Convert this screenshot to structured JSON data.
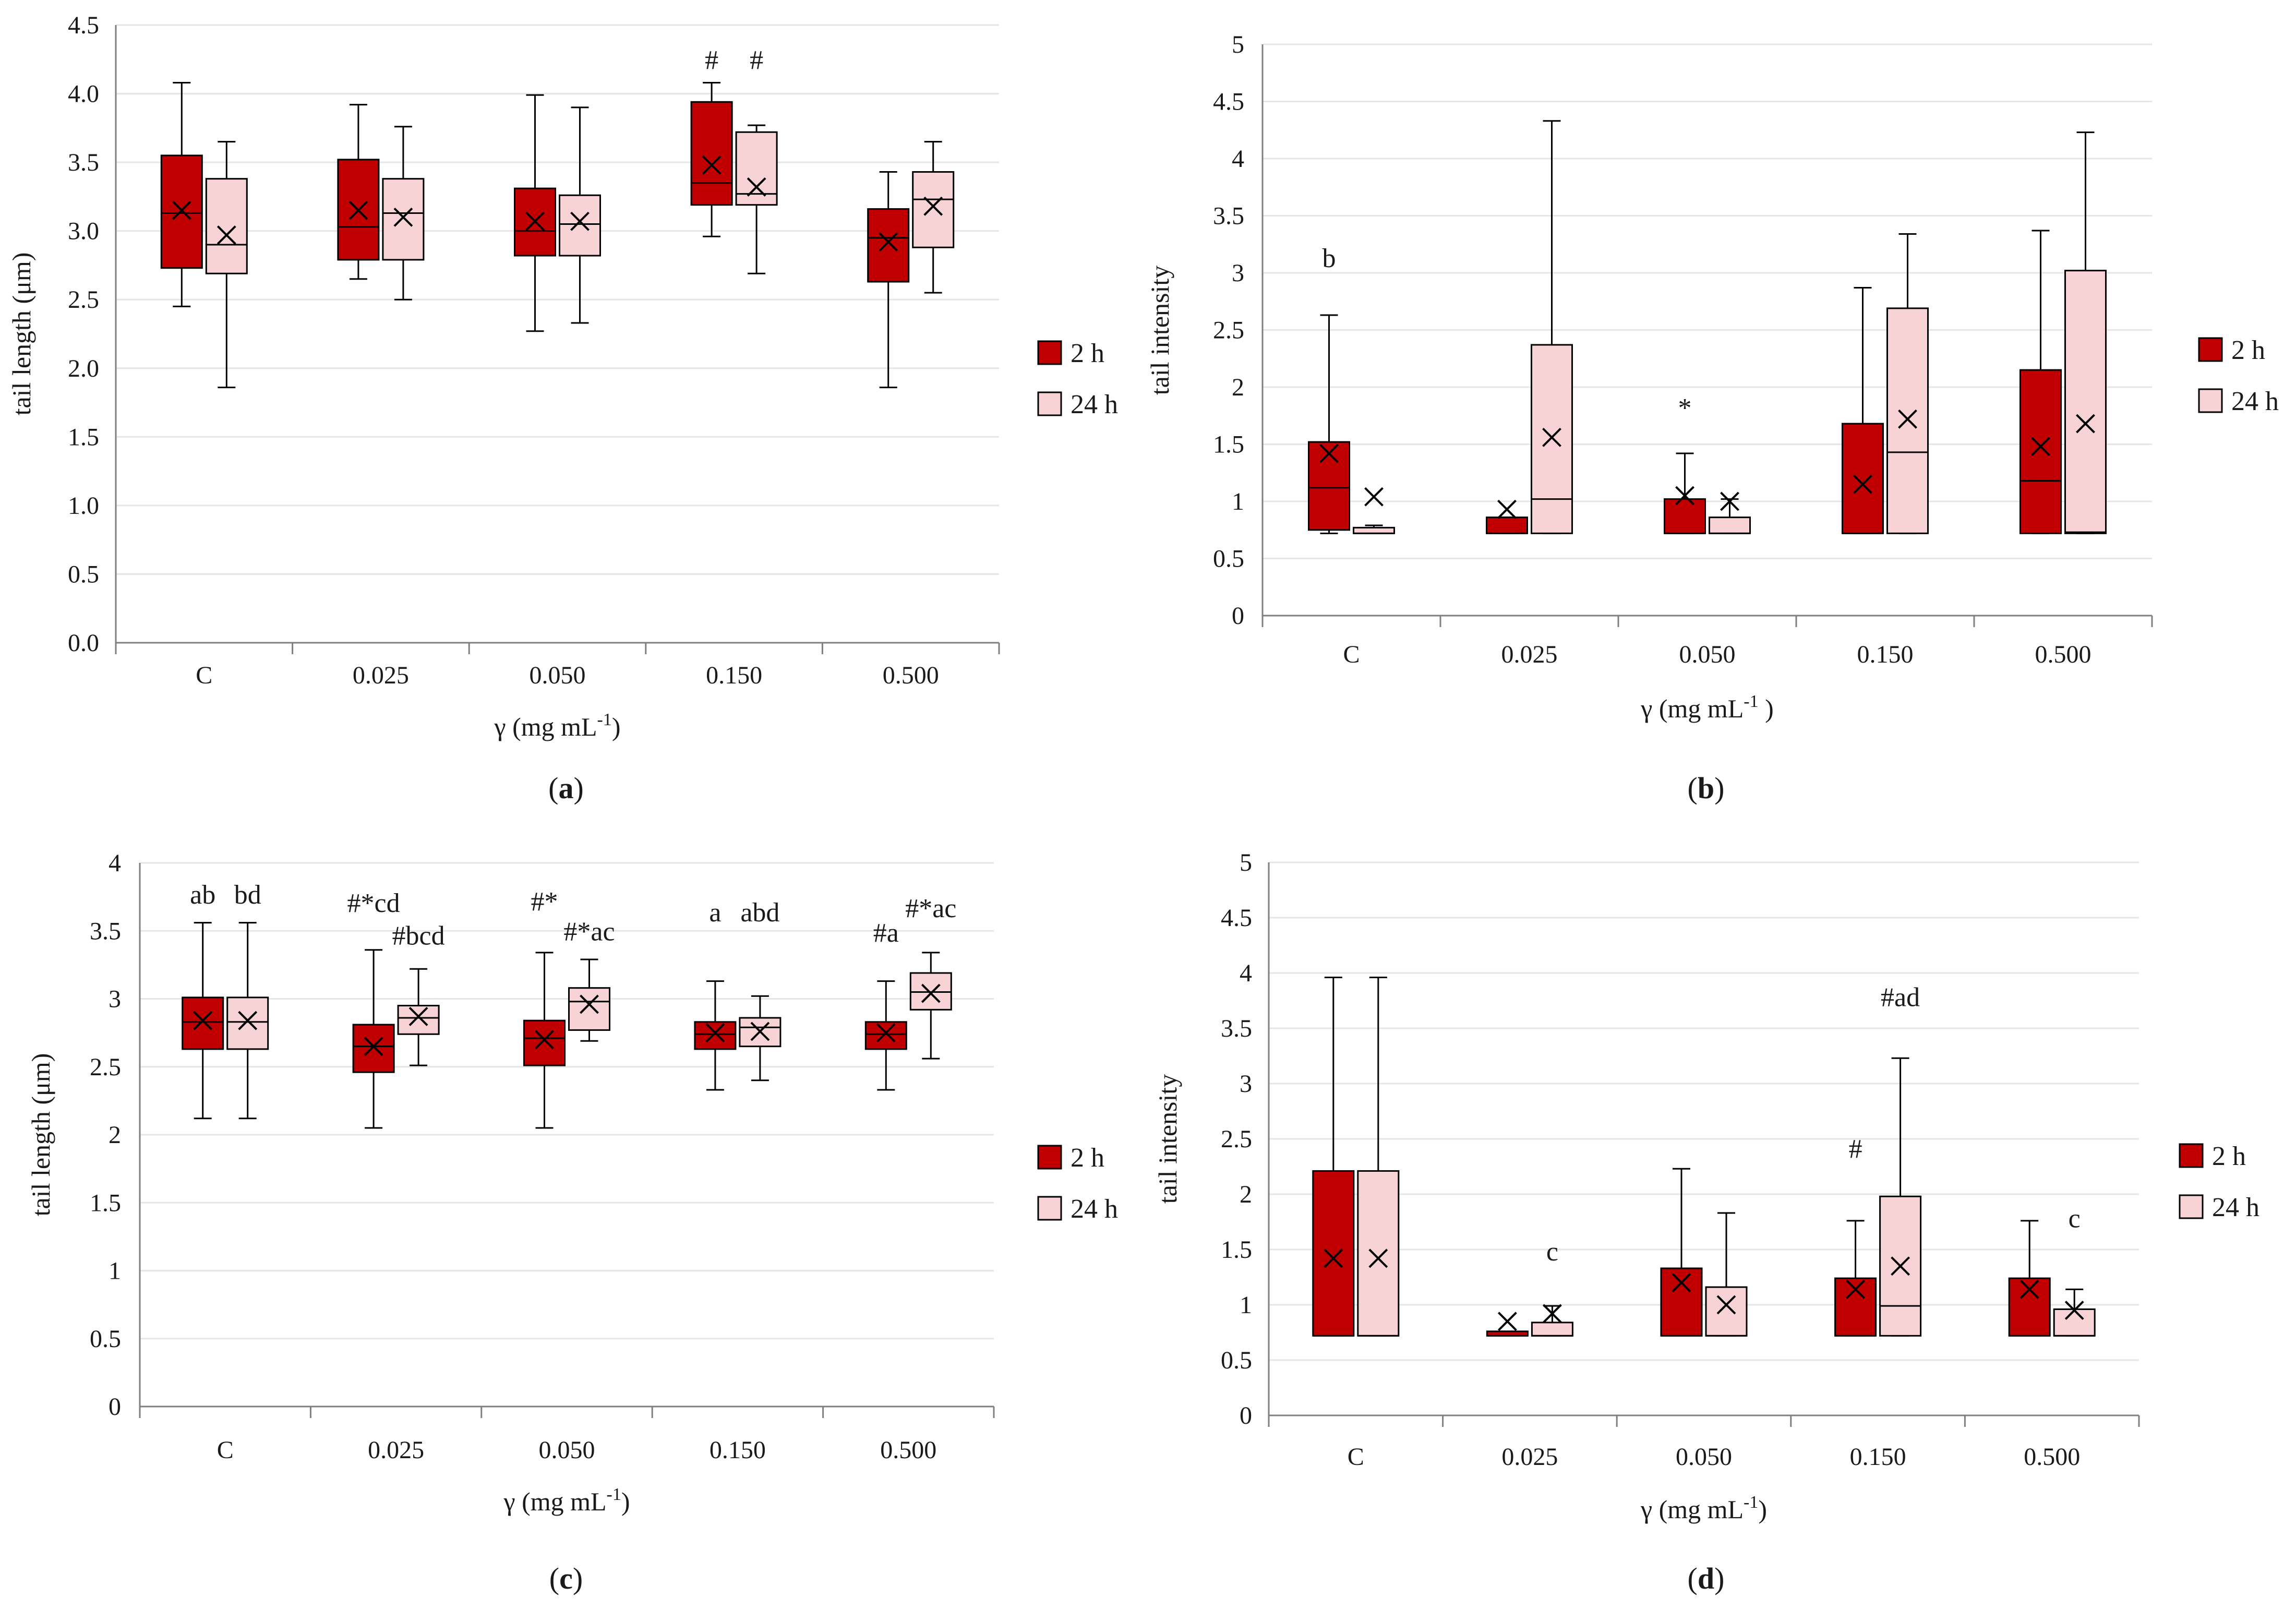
{
  "colors": {
    "h2": "#c00000",
    "h24": "#f8d3d5",
    "stroke": "#000000",
    "grid": "#e6e6e6"
  },
  "legend": {
    "h2": "2 h",
    "h24": "24 h"
  },
  "chart_data": [
    {
      "type": "box",
      "panel": "(a)",
      "panel_label": {
        "open": "(",
        "letter": "a",
        "close": ")"
      },
      "xlabel": "γ (mg mL-1)",
      "xlabel_main": "γ (mg mL",
      "xlabel_sup": "-1",
      "xlabel_end": ")",
      "ylabel": "tail length (μm)",
      "ylim": [
        0,
        4.5
      ],
      "yticks": [
        "0.0",
        "0.5",
        "1.0",
        "1.5",
        "2.0",
        "2.5",
        "3.0",
        "3.5",
        "4.0",
        "4.5"
      ],
      "categories": [
        "C",
        "0.025",
        "0.050",
        "0.150",
        "0.500"
      ],
      "series": [
        {
          "name": "2 h",
          "boxes": [
            {
              "min": 2.45,
              "q1": 2.73,
              "median": 3.13,
              "q3": 3.55,
              "max": 4.08,
              "mean": 3.15
            },
            {
              "min": 2.65,
              "q1": 2.79,
              "median": 3.03,
              "q3": 3.52,
              "max": 3.92,
              "mean": 3.15
            },
            {
              "min": 2.27,
              "q1": 2.82,
              "median": 3.0,
              "q3": 3.31,
              "max": 3.99,
              "mean": 3.07
            },
            {
              "min": 2.96,
              "q1": 3.19,
              "median": 3.35,
              "q3": 3.94,
              "max": 4.08,
              "mean": 3.48
            },
            {
              "min": 1.86,
              "q1": 2.63,
              "median": 2.95,
              "q3": 3.16,
              "max": 3.43,
              "mean": 2.92
            }
          ]
        },
        {
          "name": "24 h",
          "boxes": [
            {
              "min": 1.86,
              "q1": 2.69,
              "median": 2.9,
              "q3": 3.38,
              "max": 3.65,
              "mean": 2.97
            },
            {
              "min": 2.5,
              "q1": 2.79,
              "median": 3.13,
              "q3": 3.38,
              "max": 3.76,
              "mean": 3.1
            },
            {
              "min": 2.33,
              "q1": 2.82,
              "median": 3.05,
              "q3": 3.26,
              "max": 3.9,
              "mean": 3.07
            },
            {
              "min": 2.69,
              "q1": 3.19,
              "median": 3.27,
              "q3": 3.72,
              "max": 3.77,
              "mean": 3.32
            },
            {
              "min": 2.55,
              "q1": 2.88,
              "median": 3.23,
              "q3": 3.43,
              "max": 3.65,
              "mean": 3.18
            }
          ]
        }
      ],
      "annotations": [
        {
          "category": "0.150",
          "series": "2 h",
          "text": "#",
          "y": 4.18
        },
        {
          "category": "0.150",
          "series": "24 h",
          "text": "#",
          "y": 4.18
        }
      ]
    },
    {
      "type": "box",
      "panel": "(b)",
      "panel_label": {
        "open": "(",
        "letter": "b",
        "close": ")"
      },
      "xlabel": "γ (mg mL-1 )",
      "xlabel_main": "γ (mg mL",
      "xlabel_sup": "-1",
      "xlabel_end": " )",
      "ylabel": "tail intensity",
      "ylim": [
        0,
        5
      ],
      "yticks": [
        "0",
        "0.5",
        "1",
        "1.5",
        "2",
        "2.5",
        "3",
        "3.5",
        "4",
        "4.5",
        "5"
      ],
      "categories": [
        "C",
        "0.025",
        "0.050",
        "0.150",
        "0.500"
      ],
      "series": [
        {
          "name": "2 h",
          "boxes": [
            {
              "min": 0.72,
              "q1": 0.75,
              "median": 1.12,
              "q3": 1.52,
              "max": 2.63,
              "mean": 1.42
            },
            {
              "min": 0.72,
              "q1": 0.72,
              "median": 0.72,
              "q3": 0.86,
              "max": 0.86,
              "mean": 0.93
            },
            {
              "min": 0.72,
              "q1": 0.72,
              "median": 0.72,
              "q3": 1.02,
              "max": 1.42,
              "mean": 1.05
            },
            {
              "min": 0.72,
              "q1": 0.72,
              "median": 0.72,
              "q3": 1.68,
              "max": 2.87,
              "mean": 1.15
            },
            {
              "min": 0.72,
              "q1": 0.72,
              "median": 1.18,
              "q3": 2.15,
              "max": 3.37,
              "mean": 1.48
            }
          ]
        },
        {
          "name": "24 h",
          "boxes": [
            {
              "min": 0.72,
              "q1": 0.72,
              "median": 0.72,
              "q3": 0.77,
              "max": 0.79,
              "mean": 1.04
            },
            {
              "min": 0.72,
              "q1": 0.72,
              "median": 1.02,
              "q3": 2.37,
              "max": 4.33,
              "mean": 1.56
            },
            {
              "min": 0.72,
              "q1": 0.72,
              "median": 0.72,
              "q3": 0.86,
              "max": 1.02,
              "mean": 1.0
            },
            {
              "min": 0.72,
              "q1": 0.72,
              "median": 1.43,
              "q3": 2.69,
              "max": 3.34,
              "mean": 1.72
            },
            {
              "min": 0.72,
              "q1": 0.72,
              "median": 0.73,
              "q3": 3.02,
              "max": 4.23,
              "mean": 1.68
            }
          ]
        }
      ],
      "annotations": [
        {
          "category": "C",
          "series": "2 h",
          "text": "b",
          "y": 3.05
        },
        {
          "category": "0.050",
          "series": "2 h",
          "text": "*",
          "y": 1.74
        }
      ]
    },
    {
      "type": "box",
      "panel": "(c)",
      "panel_label": {
        "open": "(",
        "letter": "c",
        "close": ")"
      },
      "xlabel": "γ (mg mL-1)",
      "xlabel_main": "γ (mg mL",
      "xlabel_sup": "-1",
      "xlabel_end": ")",
      "ylabel": "tail length (μm)",
      "ylim": [
        0,
        4
      ],
      "yticks": [
        "0",
        "0.5",
        "1",
        "1.5",
        "2",
        "2.5",
        "3",
        "3.5",
        "4"
      ],
      "categories": [
        "C",
        "0.025",
        "0.050",
        "0.150",
        "0.500"
      ],
      "series": [
        {
          "name": "2 h",
          "boxes": [
            {
              "min": 2.12,
              "q1": 2.63,
              "median": 2.83,
              "q3": 3.01,
              "max": 3.56,
              "mean": 2.84
            },
            {
              "min": 2.05,
              "q1": 2.46,
              "median": 2.65,
              "q3": 2.81,
              "max": 3.36,
              "mean": 2.65
            },
            {
              "min": 2.05,
              "q1": 2.51,
              "median": 2.71,
              "q3": 2.84,
              "max": 3.34,
              "mean": 2.7
            },
            {
              "min": 2.33,
              "q1": 2.63,
              "median": 2.74,
              "q3": 2.83,
              "max": 3.13,
              "mean": 2.75
            },
            {
              "min": 2.33,
              "q1": 2.63,
              "median": 2.74,
              "q3": 2.83,
              "max": 3.13,
              "mean": 2.75
            }
          ]
        },
        {
          "name": "24 h",
          "boxes": [
            {
              "min": 2.12,
              "q1": 2.63,
              "median": 2.83,
              "q3": 3.01,
              "max": 3.56,
              "mean": 2.84
            },
            {
              "min": 2.51,
              "q1": 2.74,
              "median": 2.86,
              "q3": 2.95,
              "max": 3.22,
              "mean": 2.87
            },
            {
              "min": 2.69,
              "q1": 2.77,
              "median": 2.98,
              "q3": 3.08,
              "max": 3.29,
              "mean": 2.96
            },
            {
              "min": 2.4,
              "q1": 2.65,
              "median": 2.79,
              "q3": 2.86,
              "max": 3.02,
              "mean": 2.76
            },
            {
              "min": 2.56,
              "q1": 2.92,
              "median": 3.05,
              "q3": 3.19,
              "max": 3.34,
              "mean": 3.04
            }
          ]
        }
      ],
      "annotations": [
        {
          "category": "C",
          "series": "2 h",
          "text": "ab",
          "y": 3.7
        },
        {
          "category": "C",
          "series": "24 h",
          "text": "bd",
          "y": 3.7
        },
        {
          "category": "0.025",
          "series": "2 h",
          "text": "#*cd",
          "y": 3.64
        },
        {
          "category": "0.025",
          "series": "24 h",
          "text": "#bcd",
          "y": 3.4
        },
        {
          "category": "0.050",
          "series": "2 h",
          "text": "#*",
          "y": 3.65
        },
        {
          "category": "0.050",
          "series": "24 h",
          "text": "#*ac",
          "y": 3.43
        },
        {
          "category": "0.150",
          "series": "2 h",
          "text": "a",
          "y": 3.57
        },
        {
          "category": "0.150",
          "series": "24 h",
          "text": "abd",
          "y": 3.57
        },
        {
          "category": "0.500",
          "series": "2 h",
          "text": "#a",
          "y": 3.42
        },
        {
          "category": "0.500",
          "series": "24 h",
          "text": "#*ac",
          "y": 3.6
        }
      ]
    },
    {
      "type": "box",
      "panel": "(d)",
      "panel_label": {
        "open": "(",
        "letter": "d",
        "close": ")"
      },
      "xlabel": "γ (mg mL-1)",
      "xlabel_main": "γ (mg mL",
      "xlabel_sup": "-1",
      "xlabel_end": ")",
      "ylabel": "tail intensity",
      "ylim": [
        0,
        5
      ],
      "yticks": [
        "0",
        "0.5",
        "1",
        "1.5",
        "2",
        "2.5",
        "3",
        "3.5",
        "4",
        "4.5",
        "5"
      ],
      "categories": [
        "C",
        "0.025",
        "0.050",
        "0.150",
        "0.500"
      ],
      "series": [
        {
          "name": "2 h",
          "boxes": [
            {
              "min": 0.72,
              "q1": 0.72,
              "median": 0.72,
              "q3": 2.21,
              "max": 3.96,
              "mean": 1.42
            },
            {
              "min": 0.72,
              "q1": 0.72,
              "median": 0.72,
              "q3": 0.76,
              "max": 0.76,
              "mean": 0.85
            },
            {
              "min": 0.72,
              "q1": 0.72,
              "median": 0.72,
              "q3": 1.33,
              "max": 2.23,
              "mean": 1.2
            },
            {
              "min": 0.72,
              "q1": 0.72,
              "median": 0.72,
              "q3": 1.24,
              "max": 1.76,
              "mean": 1.14
            },
            {
              "min": 0.72,
              "q1": 0.72,
              "median": 0.72,
              "q3": 1.24,
              "max": 1.76,
              "mean": 1.14
            }
          ]
        },
        {
          "name": "24 h",
          "boxes": [
            {
              "min": 0.72,
              "q1": 0.72,
              "median": 0.72,
              "q3": 2.21,
              "max": 3.96,
              "mean": 1.42
            },
            {
              "min": 0.72,
              "q1": 0.72,
              "median": 0.72,
              "q3": 0.84,
              "max": 0.99,
              "mean": 0.92
            },
            {
              "min": 0.72,
              "q1": 0.72,
              "median": 0.72,
              "q3": 1.16,
              "max": 1.83,
              "mean": 1.0
            },
            {
              "min": 0.72,
              "q1": 0.72,
              "median": 0.99,
              "q3": 1.98,
              "max": 3.23,
              "mean": 1.35
            },
            {
              "min": 0.72,
              "q1": 0.72,
              "median": 0.72,
              "q3": 0.96,
              "max": 1.14,
              "mean": 0.95
            }
          ]
        }
      ],
      "annotations": [
        {
          "category": "0.025",
          "series": "24 h",
          "text": "c",
          "y": 1.4
        },
        {
          "category": "0.150",
          "series": "2 h",
          "text": "#",
          "y": 2.33
        },
        {
          "category": "0.150",
          "series": "24 h",
          "text": "#ad",
          "y": 3.7
        },
        {
          "category": "0.500",
          "series": "24 h",
          "text": "c",
          "y": 1.7
        }
      ]
    }
  ]
}
